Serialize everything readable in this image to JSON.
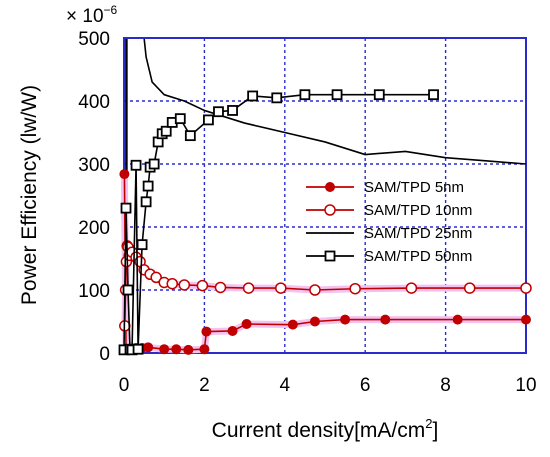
{
  "chart_data": {
    "type": "line",
    "xlabel": "Current density[mA/cm",
    "xlabel_sup": "2",
    "xlabel_close": "]",
    "ylabel": "Power Efficiency (lw/W)",
    "y_multiplier": "× 10",
    "y_multiplier_exp": "−6",
    "xlim": [
      0,
      10
    ],
    "ylim": [
      0,
      500
    ],
    "xticks": [
      "0",
      "2",
      "4",
      "6",
      "8",
      "10"
    ],
    "yticks": [
      "0",
      "100",
      "200",
      "300",
      "400",
      "500"
    ],
    "grid": true,
    "legend_position": "center-right",
    "series": [
      {
        "name": "SAM/TPD  5nm",
        "color": "#c00000",
        "marker": "filled-circle",
        "x": [
          0.01,
          0.05,
          0.1,
          0.2,
          0.3,
          0.45,
          0.6,
          1.0,
          1.3,
          1.6,
          2.0,
          2.05,
          2.7,
          3.05,
          4.2,
          4.75,
          5.5,
          6.5,
          8.3,
          10.0
        ],
        "y": [
          284,
          5,
          6,
          7,
          8,
          8,
          9,
          6,
          6,
          5,
          6,
          34,
          35,
          46,
          45,
          50,
          53,
          53,
          53,
          53
        ]
      },
      {
        "name": "SAM/TPD  10nm",
        "color": "#c00000",
        "marker": "open-circle",
        "x": [
          0.02,
          0.04,
          0.06,
          0.08,
          0.1,
          0.13,
          0.2,
          0.3,
          0.4,
          0.5,
          0.65,
          0.8,
          1.0,
          1.2,
          1.5,
          1.95,
          2.4,
          3.1,
          3.9,
          4.75,
          5.75,
          7.15,
          8.6,
          10.0
        ],
        "y": [
          43,
          100,
          145,
          170,
          168,
          155,
          160,
          152,
          145,
          132,
          125,
          120,
          112,
          110,
          108,
          107,
          104,
          103,
          103,
          100,
          102,
          103,
          103,
          103
        ]
      },
      {
        "name": "SAM/TPD  25nm",
        "color": "#000000",
        "marker": "none",
        "x": [
          0.35,
          0.45,
          0.55,
          0.7,
          1.0,
          1.5,
          2.0,
          3.0,
          4.0,
          5.0,
          6.0,
          7.0,
          8.0,
          9.0,
          10.0
        ],
        "y": [
          500,
          530,
          470,
          430,
          410,
          400,
          385,
          365,
          350,
          335,
          315,
          320,
          310,
          305,
          300
        ]
      },
      {
        "name": "SAM/TPD  50nm",
        "color": "#000000",
        "marker": "open-square",
        "x": [
          0.0,
          0.05,
          0.1,
          0.15,
          0.2,
          0.3,
          0.35,
          0.45,
          0.55,
          0.6,
          0.65,
          0.75,
          0.85,
          0.95,
          1.05,
          1.2,
          1.4,
          1.65,
          2.1,
          2.35,
          2.7,
          3.2,
          3.8,
          4.5,
          5.3,
          6.35,
          7.7
        ],
        "y": [
          5,
          230,
          100,
          6,
          5,
          298,
          6,
          172,
          240,
          265,
          295,
          300,
          335,
          348,
          352,
          366,
          372,
          345,
          370,
          383,
          385,
          408,
          405,
          410,
          410,
          410,
          410
        ]
      }
    ],
    "curve_spike_at_zero": {
      "color": "#000000",
      "x": [
        0.06,
        0.06
      ],
      "y": [
        0,
        500
      ]
    }
  }
}
